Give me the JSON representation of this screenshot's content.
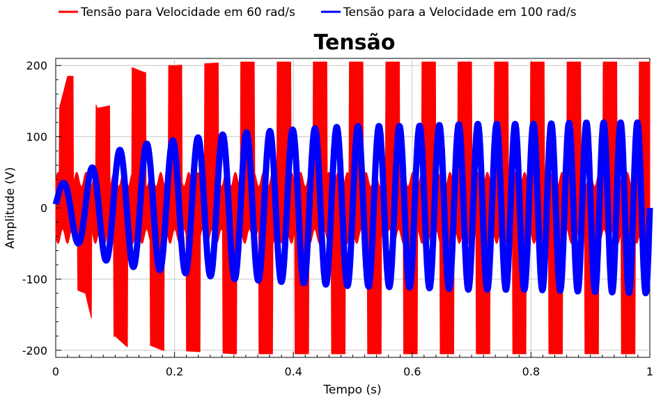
{
  "chart_data": {
    "type": "line",
    "title": "Tensão",
    "xlabel": "Tempo (s)",
    "ylabel": "Amplitude (V)",
    "xlim": [
      0,
      1
    ],
    "ylim": [
      -210,
      210
    ],
    "x_ticks": [
      0,
      0.2,
      0.4,
      0.6,
      0.8,
      1
    ],
    "x_tick_labels": [
      "0",
      "0.2",
      "0.4",
      "0.6",
      "0.8",
      "1"
    ],
    "y_ticks": [
      -200,
      -100,
      0,
      100,
      200
    ],
    "y_tick_labels": [
      "-200",
      "-100",
      "0",
      "100",
      "200"
    ],
    "grid": true,
    "legend_position": "top",
    "series": [
      {
        "name": "Tensão para Velocidade em 60 rad/s",
        "color": "#ff0000",
        "description_envelope": {
          "x": [
            0,
            0.02,
            0.05,
            0.07,
            0.1,
            0.12,
            0.15,
            0.18,
            0.2,
            0.3,
            0.5,
            0.7,
            1.0
          ],
          "upper": [
            120,
            185,
            185,
            140,
            145,
            200,
            190,
            200,
            200,
            205,
            205,
            205,
            205
          ],
          "lower": [
            -120,
            -110,
            -120,
            -190,
            -180,
            -195,
            -190,
            -200,
            -200,
            -205,
            -205,
            -205,
            -205
          ]
        }
      },
      {
        "name": "Tensão para a Velocidade em 100 rad/s",
        "color": "#0000ff",
        "description_envelope": {
          "x": [
            0,
            0.05,
            0.1,
            0.15,
            0.2,
            0.3,
            0.4,
            0.5,
            0.6,
            0.7,
            0.8,
            0.9,
            1.0
          ],
          "upper": [
            30,
            50,
            80,
            90,
            95,
            105,
            110,
            115,
            115,
            118,
            118,
            120,
            120
          ],
          "lower": [
            -20,
            -60,
            -80,
            -85,
            -90,
            -100,
            -105,
            -110,
            -112,
            -115,
            -115,
            -118,
            -120
          ]
        }
      }
    ]
  }
}
